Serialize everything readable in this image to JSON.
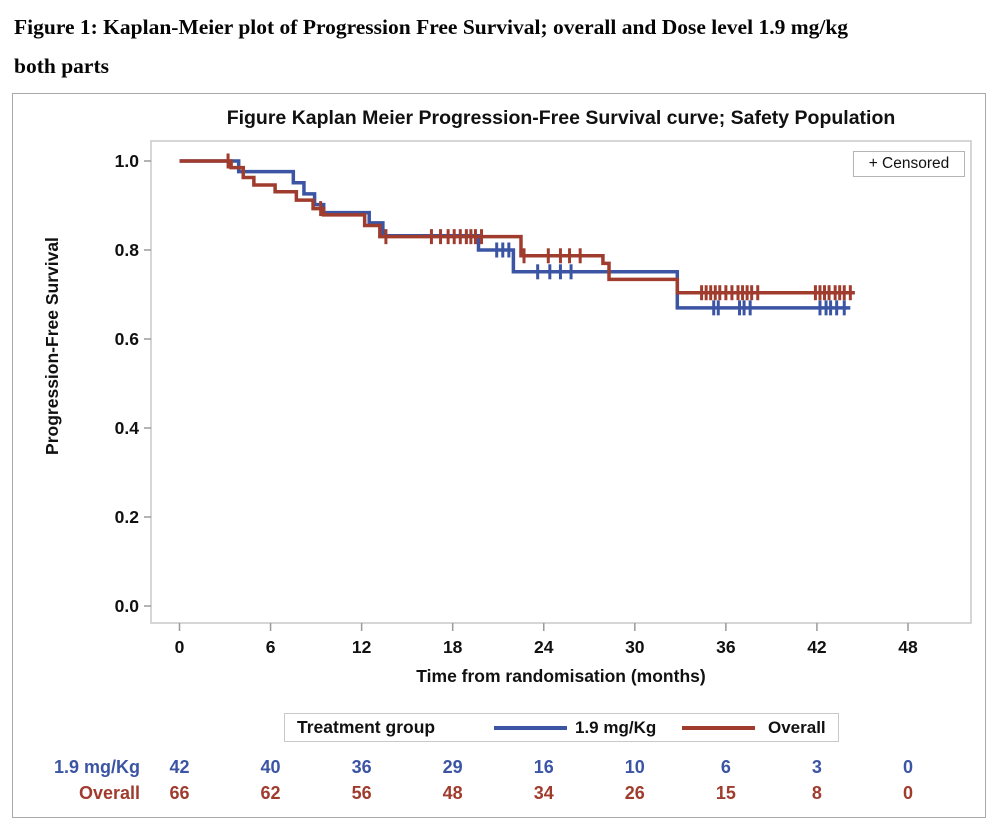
{
  "document": {
    "heading_line1": "Figure 1: Kaplan-Meier plot of Progression Free Survival; overall and Dose level 1.9 mg/kg",
    "heading_line2": "both parts"
  },
  "chart_data": {
    "type": "line",
    "subtype": "kaplan-meier-step",
    "title": "Figure Kaplan Meier Progression-Free Survival curve; Safety Population",
    "xlabel": "Time from randomisation (months)",
    "ylabel": "Progression-Free Survival",
    "xticks": [
      0,
      6,
      12,
      18,
      24,
      30,
      36,
      42,
      48
    ],
    "yticks": [
      {
        "label": "1.0",
        "value": 1.0
      },
      {
        "label": "0.8",
        "value": 0.8
      },
      {
        "label": "0.6",
        "value": 0.6
      },
      {
        "label": "0.4",
        "value": 0.4
      },
      {
        "label": "0.2",
        "value": 0.2
      },
      {
        "label": "0.0",
        "value": 0.0
      }
    ],
    "xlim": [
      0,
      48
    ],
    "ylim": [
      0.0,
      1.0
    ],
    "grid": false,
    "censored_legend": "+ Censored",
    "legend": {
      "title": "Treatment group",
      "position": "bottom",
      "entries": [
        {
          "label": "1.9 mg/Kg",
          "color": "#3B55A4"
        },
        {
          "label": "Overall",
          "color": "#A03C2E"
        }
      ]
    },
    "colors": {
      "dose_blue": "#3B55A4",
      "overall_red": "#A03C2E",
      "plot_frame": "#c8c8c8",
      "axis_tick": "#9a9a9a",
      "text": "#111111"
    },
    "series": [
      {
        "name": "1.9 mg/Kg",
        "color": "#3B55A4",
        "end_time": 44.2,
        "steps": [
          [
            0,
            1.0
          ],
          [
            3.9,
            0.976
          ],
          [
            7.5,
            0.951
          ],
          [
            8.2,
            0.926
          ],
          [
            8.9,
            0.902
          ],
          [
            9.5,
            0.884
          ],
          [
            12.5,
            0.861
          ],
          [
            13.4,
            0.832
          ],
          [
            19.7,
            0.8
          ],
          [
            22.0,
            0.751
          ],
          [
            32.8,
            0.67
          ]
        ],
        "censor_marks": [
          [
            20.9,
            0.8
          ],
          [
            21.3,
            0.8
          ],
          [
            21.7,
            0.8
          ],
          [
            23.6,
            0.751
          ],
          [
            24.4,
            0.751
          ],
          [
            25.1,
            0.751
          ],
          [
            25.8,
            0.751
          ],
          [
            35.2,
            0.67
          ],
          [
            35.5,
            0.67
          ],
          [
            36.9,
            0.67
          ],
          [
            37.2,
            0.67
          ],
          [
            37.6,
            0.67
          ],
          [
            42.2,
            0.67
          ],
          [
            42.6,
            0.67
          ],
          [
            42.9,
            0.67
          ],
          [
            43.3,
            0.67
          ],
          [
            43.8,
            0.67
          ]
        ]
      },
      {
        "name": "Overall",
        "color": "#A03C2E",
        "end_time": 44.5,
        "steps": [
          [
            0,
            1.0
          ],
          [
            3.4,
            0.985
          ],
          [
            4.2,
            0.963
          ],
          [
            4.9,
            0.946
          ],
          [
            6.3,
            0.931
          ],
          [
            7.7,
            0.912
          ],
          [
            8.8,
            0.893
          ],
          [
            9.5,
            0.879
          ],
          [
            12.2,
            0.855
          ],
          [
            13.2,
            0.83
          ],
          [
            22.5,
            0.787
          ],
          [
            27.9,
            0.77
          ],
          [
            28.3,
            0.734
          ],
          [
            32.8,
            0.704
          ]
        ],
        "censor_marks": [
          [
            3.2,
            1.0
          ],
          [
            9.3,
            0.893
          ],
          [
            13.6,
            0.83
          ],
          [
            16.6,
            0.83
          ],
          [
            17.2,
            0.83
          ],
          [
            17.7,
            0.83
          ],
          [
            18.1,
            0.83
          ],
          [
            18.5,
            0.83
          ],
          [
            18.9,
            0.83
          ],
          [
            19.2,
            0.83
          ],
          [
            19.5,
            0.83
          ],
          [
            19.9,
            0.83
          ],
          [
            22.7,
            0.787
          ],
          [
            24.3,
            0.787
          ],
          [
            25.1,
            0.787
          ],
          [
            25.7,
            0.787
          ],
          [
            26.4,
            0.787
          ],
          [
            34.4,
            0.704
          ],
          [
            34.7,
            0.704
          ],
          [
            35.0,
            0.704
          ],
          [
            35.3,
            0.704
          ],
          [
            35.6,
            0.704
          ],
          [
            36.0,
            0.704
          ],
          [
            36.4,
            0.704
          ],
          [
            36.8,
            0.704
          ],
          [
            37.1,
            0.704
          ],
          [
            37.4,
            0.704
          ],
          [
            37.7,
            0.704
          ],
          [
            38.1,
            0.704
          ],
          [
            41.9,
            0.704
          ],
          [
            42.2,
            0.704
          ],
          [
            42.5,
            0.704
          ],
          [
            42.8,
            0.704
          ],
          [
            43.2,
            0.704
          ],
          [
            43.5,
            0.704
          ],
          [
            43.8,
            0.704
          ],
          [
            44.2,
            0.704
          ]
        ]
      }
    ],
    "at_risk_table": {
      "times": [
        0,
        6,
        12,
        18,
        24,
        30,
        36,
        42,
        48
      ],
      "rows": [
        {
          "label": "1.9 mg/Kg",
          "color": "#3B55A4",
          "counts": [
            42,
            40,
            36,
            29,
            16,
            10,
            6,
            3,
            0
          ]
        },
        {
          "label": "Overall",
          "color": "#A03C2E",
          "counts": [
            66,
            62,
            56,
            48,
            34,
            26,
            15,
            8,
            0
          ]
        }
      ]
    }
  }
}
